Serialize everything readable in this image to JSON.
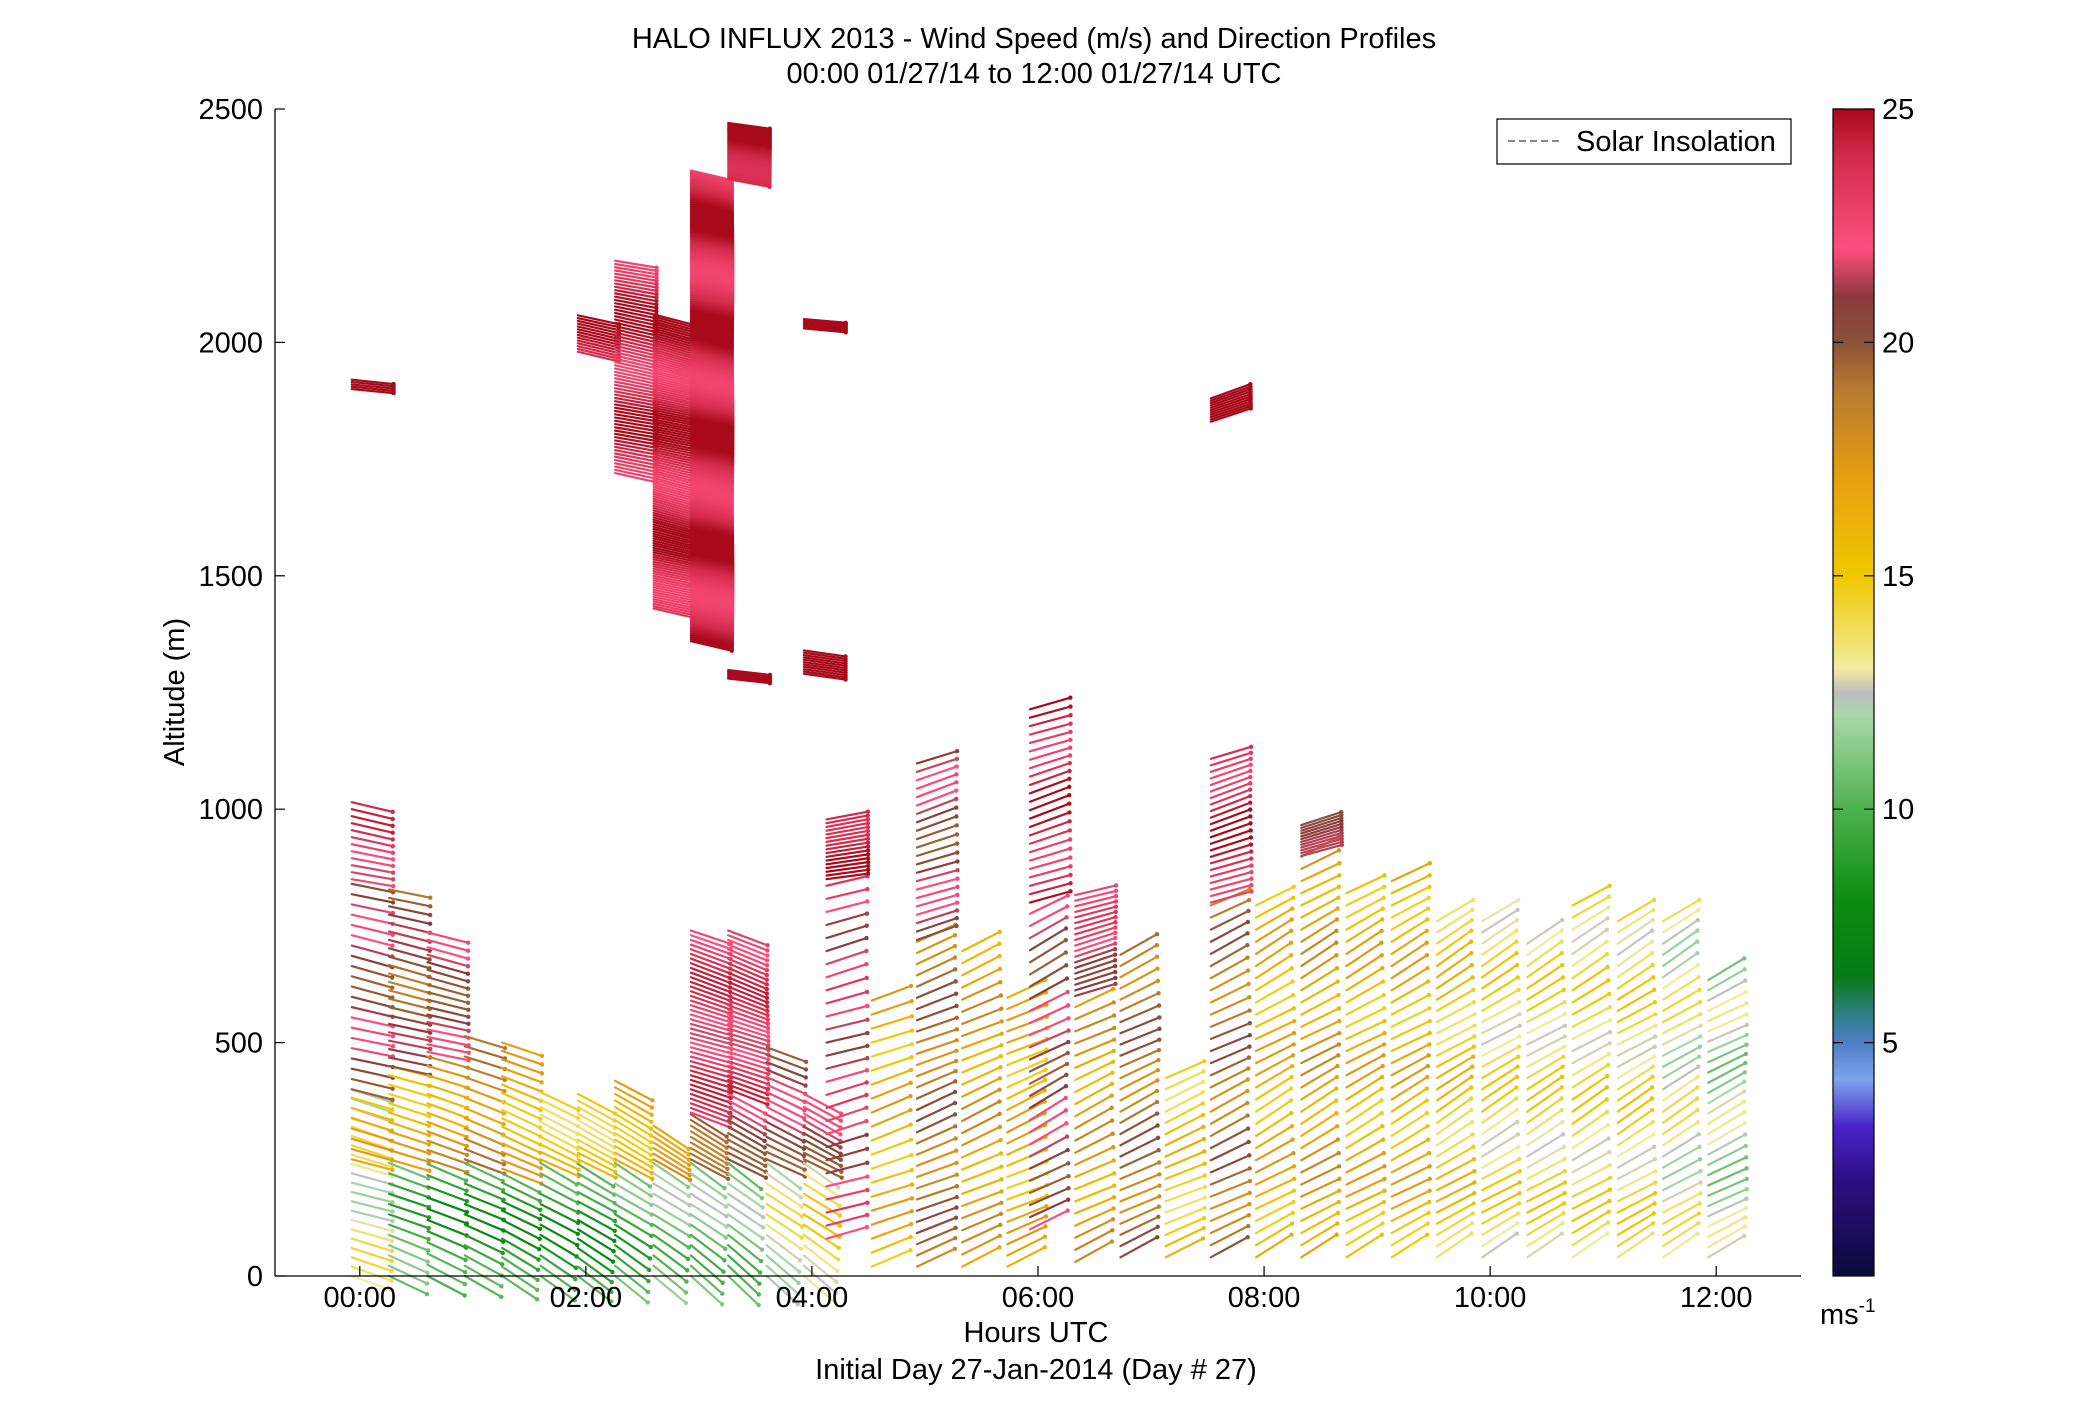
{
  "chart_data": {
    "type": "scatter",
    "title": "HALO INFLUX 2013 - Wind Speed (m/s) and Direction Profiles",
    "subtitle": "00:00 01/27/14 to 12:00 01/27/14  UTC",
    "xlabel": "Hours UTC",
    "ylabel": "Altitude (m)",
    "footnote": "Initial Day 27-Jan-2014 (Day # 27)",
    "xlim": [
      -0.75,
      12.75
    ],
    "ylim": [
      0,
      2500
    ],
    "x_ticks": [
      {
        "value": 0,
        "label": "00:00"
      },
      {
        "value": 2,
        "label": "02:00"
      },
      {
        "value": 4,
        "label": "04:00"
      },
      {
        "value": 6,
        "label": "06:00"
      },
      {
        "value": 8,
        "label": "08:00"
      },
      {
        "value": 10,
        "label": "10:00"
      },
      {
        "value": 12,
        "label": "12:00"
      }
    ],
    "y_ticks": [
      "0",
      "500",
      "1000",
      "1500",
      "2000",
      "2500"
    ],
    "legend": {
      "position": "top-right",
      "entries": [
        {
          "label": "Solar Insolation",
          "style": "dashed",
          "color": "#888888"
        }
      ]
    },
    "colorbar": {
      "min": 0,
      "max": 25,
      "tick_values": [
        5,
        10,
        15,
        20,
        25
      ],
      "tick_labels": [
        "5",
        "10",
        "15",
        "20",
        "25"
      ],
      "unit_label": "ms",
      "unit_superscript": "-1",
      "stops": [
        {
          "v": 0,
          "c": "#0b0a3a"
        },
        {
          "v": 2,
          "c": "#2c0e80"
        },
        {
          "v": 3.2,
          "c": "#4a24c8"
        },
        {
          "v": 4.2,
          "c": "#7da3ee"
        },
        {
          "v": 5,
          "c": "#4c7ec4"
        },
        {
          "v": 5.6,
          "c": "#2f7f85"
        },
        {
          "v": 6.4,
          "c": "#087a16"
        },
        {
          "v": 8,
          "c": "#0a8c0e"
        },
        {
          "v": 10,
          "c": "#4fb14f"
        },
        {
          "v": 12,
          "c": "#a8d8a8"
        },
        {
          "v": 12.5,
          "c": "#bdbdbd"
        },
        {
          "v": 13,
          "c": "#f3eba0"
        },
        {
          "v": 15,
          "c": "#f0c800"
        },
        {
          "v": 17,
          "c": "#e8a010"
        },
        {
          "v": 19,
          "c": "#b87a30"
        },
        {
          "v": 20,
          "c": "#8a5238"
        },
        {
          "v": 21,
          "c": "#8c3a3c"
        },
        {
          "v": 22,
          "c": "#ff4f7f"
        },
        {
          "v": 24,
          "c": "#d22a4a"
        },
        {
          "v": 25,
          "c": "#a80a1c"
        }
      ]
    },
    "profiles": [
      {
        "t": 0.0,
        "segs": [
          [
            0,
            400,
            13,
            15,
            20
          ],
          [
            250,
            400,
            16,
            13,
            22
          ],
          [
            400,
            850,
            21,
            12,
            22
          ],
          [
            850,
            1020,
            23,
            10,
            15
          ],
          [
            1900,
            1920,
            25,
            5,
            5
          ]
        ]
      },
      {
        "t": 0.33,
        "segs": [
          [
            0,
            250,
            10,
            20,
            22
          ],
          [
            250,
            450,
            16,
            14,
            20
          ],
          [
            450,
            840,
            20,
            12,
            18
          ]
        ]
      },
      {
        "t": 0.67,
        "segs": [
          [
            0,
            250,
            9,
            22,
            24
          ],
          [
            250,
            480,
            17,
            16,
            20
          ],
          [
            480,
            740,
            21,
            12,
            16
          ]
        ]
      },
      {
        "t": 1.0,
        "segs": [
          [
            0,
            250,
            9,
            24,
            22
          ],
          [
            250,
            530,
            18,
            18,
            22
          ]
        ]
      },
      {
        "t": 1.33,
        "segs": [
          [
            0,
            230,
            9,
            28,
            20
          ],
          [
            230,
            500,
            16,
            20,
            18
          ]
        ]
      },
      {
        "t": 1.67,
        "segs": [
          [
            0,
            250,
            9,
            30,
            22
          ],
          [
            250,
            400,
            15,
            22,
            16
          ]
        ]
      },
      {
        "t": 2.0,
        "segs": [
          [
            0,
            250,
            9,
            32,
            20
          ],
          [
            250,
            400,
            15,
            24,
            14
          ],
          [
            1980,
            2060,
            25,
            10,
            6
          ]
        ]
      },
      {
        "t": 2.33,
        "segs": [
          [
            0,
            250,
            10,
            34,
            22
          ],
          [
            250,
            430,
            16,
            26,
            14
          ],
          [
            1720,
            2180,
            24,
            10,
            7
          ]
        ]
      },
      {
        "t": 2.67,
        "segs": [
          [
            0,
            250,
            11,
            35,
            22
          ],
          [
            250,
            330,
            18,
            28,
            12
          ],
          [
            1430,
            2060,
            24,
            12,
            5
          ]
        ]
      },
      {
        "t": 3.0,
        "segs": [
          [
            0,
            250,
            11,
            38,
            22
          ],
          [
            250,
            350,
            20,
            26,
            12
          ],
          [
            350,
            740,
            23,
            16,
            10
          ],
          [
            1360,
            2370,
            24,
            10,
            4
          ]
        ]
      },
      {
        "t": 3.33,
        "segs": [
          [
            0,
            250,
            11,
            40,
            22
          ],
          [
            250,
            400,
            21,
            24,
            14
          ],
          [
            400,
            740,
            23,
            18,
            10
          ],
          [
            1280,
            1300,
            25,
            5,
            3
          ],
          [
            2350,
            2470,
            25,
            8,
            4
          ]
        ]
      },
      {
        "t": 3.67,
        "segs": [
          [
            0,
            250,
            13,
            38,
            22
          ],
          [
            250,
            500,
            21,
            22,
            16
          ]
        ]
      },
      {
        "t": 4.0,
        "segs": [
          [
            0,
            250,
            14,
            36,
            22
          ],
          [
            250,
            400,
            21,
            24,
            14
          ],
          [
            1290,
            1340,
            25,
            6,
            5
          ],
          [
            2030,
            2050,
            25,
            4,
            4
          ]
        ]
      },
      {
        "t": 4.2,
        "segs": [
          [
            80,
            850,
            22,
            -14,
            28
          ],
          [
            850,
            980,
            25,
            -8,
            8
          ]
        ]
      },
      {
        "t": 4.6,
        "segs": [
          [
            20,
            600,
            16,
            -18,
            30
          ]
        ]
      },
      {
        "t": 5.0,
        "segs": [
          [
            20,
            720,
            19,
            -20,
            24
          ],
          [
            720,
            1110,
            21,
            -16,
            18
          ]
        ]
      },
      {
        "t": 5.4,
        "segs": [
          [
            20,
            700,
            17,
            -22,
            26
          ]
        ]
      },
      {
        "t": 5.8,
        "segs": [
          [
            20,
            600,
            16,
            -22,
            24
          ]
        ]
      },
      {
        "t": 6.0,
        "segs": [
          [
            100,
            800,
            21,
            -26,
            26
          ],
          [
            800,
            1230,
            24,
            -16,
            18
          ]
        ]
      },
      {
        "t": 6.4,
        "segs": [
          [
            30,
            600,
            17,
            -24,
            26
          ],
          [
            600,
            820,
            22,
            -14,
            12
          ]
        ]
      },
      {
        "t": 6.8,
        "segs": [
          [
            40,
            700,
            19,
            -24,
            24
          ]
        ]
      },
      {
        "t": 7.2,
        "segs": [
          [
            40,
            430,
            15,
            -22,
            24
          ]
        ]
      },
      {
        "t": 7.6,
        "segs": [
          [
            40,
            800,
            19,
            -24,
            26
          ],
          [
            800,
            1120,
            24,
            -16,
            14
          ],
          [
            1830,
            1880,
            25,
            -20,
            5
          ]
        ]
      },
      {
        "t": 8.0,
        "segs": [
          [
            40,
            800,
            16,
            -28,
            26
          ]
        ]
      },
      {
        "t": 8.4,
        "segs": [
          [
            40,
            900,
            17,
            -28,
            26
          ],
          [
            900,
            970,
            20,
            -14,
            6
          ]
        ]
      },
      {
        "t": 8.8,
        "segs": [
          [
            40,
            820,
            16,
            -28,
            26
          ]
        ]
      },
      {
        "t": 9.2,
        "segs": [
          [
            40,
            860,
            16,
            -28,
            26
          ]
        ]
      },
      {
        "t": 9.6,
        "segs": [
          [
            40,
            760,
            15,
            -30,
            24
          ]
        ]
      },
      {
        "t": 10.0,
        "segs": [
          [
            40,
            760,
            14,
            -30,
            24
          ]
        ]
      },
      {
        "t": 10.4,
        "segs": [
          [
            40,
            720,
            14,
            -30,
            24
          ]
        ]
      },
      {
        "t": 10.8,
        "segs": [
          [
            40,
            800,
            14,
            -30,
            26
          ]
        ]
      },
      {
        "t": 11.2,
        "segs": [
          [
            40,
            760,
            14,
            -30,
            24
          ]
        ]
      },
      {
        "t": 11.6,
        "segs": [
          [
            40,
            760,
            13,
            -30,
            24
          ]
        ]
      },
      {
        "t": 12.0,
        "segs": [
          [
            40,
            640,
            12,
            -26,
            22
          ]
        ]
      }
    ]
  }
}
